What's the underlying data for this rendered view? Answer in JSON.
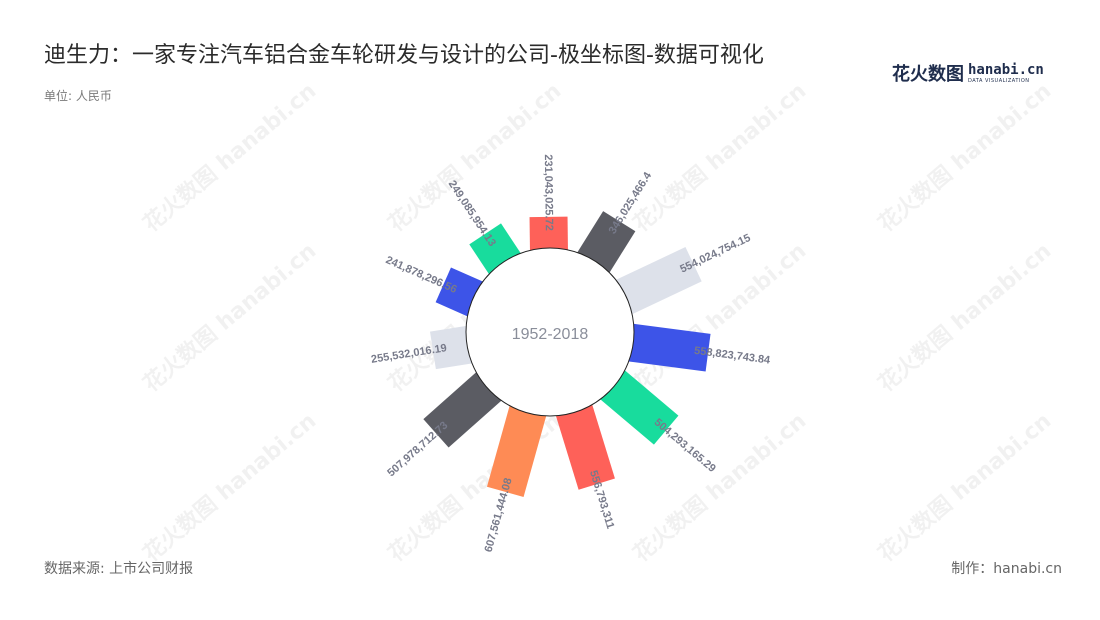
{
  "title": "迪生力：一家专注汽车铝合金车轮研发与设计的公司-极坐标图-数据可视化",
  "unit": "单位: 人民币",
  "source": "数据来源: 上市公司财报",
  "credit": "制作：hanabi.cn",
  "brand": {
    "zh": "花火数图",
    "en": "hanabi.cn",
    "sub": "DATA VISUALIZATION"
  },
  "watermark": "花火数图 hanabi.cn",
  "colors": [
    "#5b5c63",
    "#dde1ea",
    "#3d54e8",
    "#18dc9d",
    "#fe6159",
    "#fe8b55"
  ],
  "chart_data": {
    "type": "bar",
    "coordinate": "polar",
    "center_label": "1952-2018",
    "values": [
      346025466.4,
      554024754.15,
      558823743.84,
      504293165.29,
      556793311,
      607561444.08,
      507978712.73,
      255532016.19,
      241878296.56,
      249085954.13,
      231043025.72
    ],
    "labels": [
      "346,025,466.4",
      "554,024,754.15",
      "558,823,743.84",
      "504,293,165.29",
      "556,793,311",
      "607,561,444.08",
      "507,978,712.73",
      "255,532,016.19",
      "241,878,296.56",
      "249,085,954.13",
      "231,043,025.72"
    ]
  }
}
